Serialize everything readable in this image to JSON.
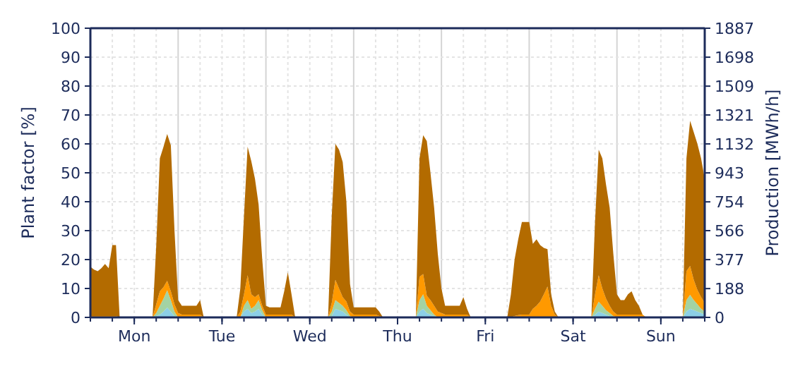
{
  "chart_data": {
    "type": "area",
    "stacked": true,
    "ylabel": "Plant factor [%]",
    "y2label": "Production [MWh/h]",
    "categories": [
      null,
      null,
      null,
      null,
      null,
      null,
      null,
      null,
      null,
      null,
      null,
      null,
      "Mon",
      null,
      null,
      null,
      null,
      null,
      null,
      null,
      null,
      null,
      null,
      null,
      null,
      null,
      null,
      null,
      null,
      null,
      null,
      null,
      null,
      null,
      null,
      null,
      "Tue",
      null,
      null,
      null,
      null,
      null,
      null,
      null,
      null,
      null,
      null,
      null,
      null,
      null,
      null,
      null,
      null,
      null,
      null,
      null,
      null,
      null,
      null,
      null,
      "Wed",
      null,
      null,
      null,
      null,
      null,
      null,
      null,
      null,
      null,
      null,
      null,
      null,
      null,
      null,
      null,
      null,
      null,
      null,
      null,
      null,
      null,
      null,
      null,
      "Thu",
      null,
      null,
      null,
      null,
      null,
      null,
      null,
      null,
      null,
      null,
      null,
      null,
      null,
      null,
      null,
      null,
      null,
      null,
      null,
      null,
      null,
      null,
      null,
      "Fri",
      null,
      null,
      null,
      null,
      null,
      null,
      null,
      null,
      null,
      null,
      null,
      null,
      null,
      null,
      null,
      null,
      null,
      null,
      null,
      null,
      null,
      null,
      null,
      "Sat",
      null,
      null,
      null,
      null,
      null,
      null,
      null,
      null,
      null,
      null,
      null,
      null,
      null,
      null,
      null,
      null,
      null,
      null,
      null,
      null,
      null,
      null,
      null,
      "Sun",
      null,
      null,
      null,
      null,
      null,
      null,
      null,
      null,
      null,
      null,
      null,
      null
    ],
    "series": [
      {
        "color": "#8ccfe6",
        "values": [
          0,
          0,
          0,
          0,
          0,
          0,
          0,
          0,
          0,
          0,
          0,
          0,
          0,
          0,
          0,
          0,
          0,
          0,
          0.5,
          1,
          2,
          3.4,
          2,
          0.5,
          0,
          0,
          0,
          0,
          0,
          0,
          0,
          0,
          0,
          0,
          0,
          0,
          0,
          0,
          0,
          0,
          0,
          0,
          2,
          3,
          1.5,
          2,
          3,
          1,
          0,
          0,
          0,
          0,
          0,
          0,
          0,
          0,
          0,
          0,
          0,
          0,
          0,
          0,
          0,
          0,
          0,
          0,
          0.5,
          3,
          2.5,
          2,
          1,
          0,
          0,
          0,
          0,
          0,
          0,
          0,
          0,
          0,
          0,
          0,
          0,
          0,
          0,
          0,
          0,
          0,
          0,
          0,
          2,
          3,
          1.5,
          1,
          0.5,
          0,
          0,
          0,
          0,
          0,
          0,
          0,
          0,
          0,
          0,
          0,
          0,
          0,
          0,
          0,
          0,
          0,
          0,
          0,
          0,
          0,
          0,
          0,
          0,
          0,
          0,
          0,
          0,
          0,
          0,
          0,
          0,
          0,
          0,
          0,
          0,
          0,
          0,
          0,
          0,
          0,
          0,
          0,
          1,
          2,
          1.5,
          1,
          0.5,
          0,
          0,
          0,
          0,
          0,
          0,
          0,
          0,
          0,
          0,
          0,
          0,
          0,
          0,
          0,
          0,
          0,
          0,
          0,
          0,
          2,
          3,
          2.5,
          2,
          1.5,
          1
        ]
      },
      {
        "color": "#a3d3a3",
        "values": [
          0,
          0,
          0,
          0,
          0,
          0,
          0,
          0,
          0,
          0,
          0,
          0,
          0,
          0,
          0,
          0,
          0,
          0,
          1,
          3,
          4.5,
          6,
          4,
          1.5,
          0,
          0,
          0,
          0,
          0,
          0,
          0,
          0,
          0,
          0,
          0,
          0,
          0,
          0,
          0,
          0,
          0,
          0,
          2,
          3,
          1.5,
          2,
          3,
          1.5,
          0,
          0,
          0,
          0,
          0,
          0,
          0,
          0,
          0,
          0,
          0,
          0,
          0,
          0,
          0,
          0,
          0,
          0,
          1.5,
          3,
          2.5,
          2,
          1.5,
          0.5,
          0,
          0,
          0,
          0,
          0,
          0,
          0,
          0,
          0,
          0,
          0,
          0,
          0,
          0,
          0,
          0,
          0,
          0,
          4,
          5,
          2.5,
          1.5,
          0.5,
          0,
          0,
          0,
          0,
          0,
          0,
          0,
          0,
          0,
          0,
          0,
          0,
          0,
          0,
          0,
          0,
          0,
          0,
          0,
          0,
          0,
          0,
          0,
          0,
          0,
          0,
          0,
          0,
          0,
          0,
          0,
          0,
          0,
          0,
          0,
          0,
          0,
          0,
          0,
          0,
          0,
          0,
          0,
          2,
          3.4,
          2.5,
          1.5,
          1,
          0.5,
          0,
          0,
          0,
          0,
          0,
          0,
          0,
          0,
          0,
          0,
          0,
          0,
          0,
          0,
          0,
          0,
          0,
          0,
          0,
          4,
          4.8,
          3.5,
          2.5,
          1.5,
          1
        ]
      },
      {
        "color": "#ff9900",
        "values": [
          0.5,
          0.5,
          0.5,
          0.5,
          0.5,
          0.5,
          0.5,
          0.5,
          0,
          0,
          0,
          0,
          0,
          0,
          0,
          0,
          0,
          0,
          3,
          5,
          4,
          3.3,
          3,
          2.5,
          1.5,
          1,
          1,
          1,
          1,
          1,
          1,
          0,
          0,
          0,
          0,
          0,
          0,
          0,
          0,
          0,
          0,
          2,
          4,
          8.6,
          5,
          3,
          2,
          1.5,
          1,
          1,
          1,
          1,
          1,
          1,
          1,
          1,
          0,
          0,
          0,
          0,
          0,
          0,
          0,
          0,
          0,
          0,
          3,
          7,
          5,
          3,
          3,
          1.5,
          1,
          1,
          1,
          1,
          1,
          1,
          1,
          0.5,
          0,
          0,
          0,
          0,
          0,
          0,
          0,
          0,
          0,
          0,
          8,
          7,
          3.5,
          3.5,
          3,
          2,
          1.5,
          1,
          1,
          1,
          1,
          1,
          1,
          1,
          0,
          0,
          0,
          0,
          0,
          0,
          0,
          0,
          0,
          0,
          0,
          0,
          0.5,
          0.8,
          1,
          1,
          1,
          3,
          4,
          5.5,
          8,
          10.7,
          4,
          1,
          0,
          0,
          0,
          0,
          0,
          0,
          0,
          0,
          0,
          0,
          5,
          9.2,
          6,
          4,
          2.5,
          1.5,
          1,
          1,
          1,
          1,
          1,
          1,
          1,
          1,
          0,
          0,
          0,
          0,
          0,
          0,
          0,
          0,
          0,
          0,
          0,
          10,
          10,
          7,
          5,
          4,
          3
        ]
      },
      {
        "color": "#b36b00",
        "values": [
          17,
          16,
          15.5,
          16.5,
          18,
          16.5,
          24.5,
          24.5,
          0,
          0,
          0,
          0,
          0,
          0,
          0,
          0,
          0,
          0,
          20,
          46,
          48.5,
          50.7,
          50.5,
          25.5,
          4.5,
          3,
          3,
          3,
          3,
          3,
          5,
          0,
          0,
          0,
          0,
          0,
          0,
          0,
          0,
          0,
          0,
          8,
          27,
          44.4,
          46,
          41,
          31,
          16,
          3,
          2.5,
          2.5,
          2.5,
          2.5,
          8,
          14.6,
          7,
          0,
          0,
          0,
          0,
          0,
          0,
          0,
          0,
          0,
          0,
          30,
          47,
          48,
          46.7,
          34.5,
          9.5,
          2.5,
          2.5,
          2.5,
          2.5,
          2.5,
          2.5,
          2.5,
          1.5,
          0,
          0,
          0,
          0,
          0,
          0,
          0,
          0,
          0,
          0,
          41,
          48,
          53.5,
          44,
          34,
          20,
          8.5,
          3,
          3,
          3,
          3,
          3,
          6,
          2,
          0,
          0,
          0,
          0,
          0,
          0,
          0,
          0,
          0,
          0,
          0,
          8,
          19.5,
          26.2,
          32,
          32,
          32,
          22.4,
          23,
          19.5,
          16,
          12.9,
          4,
          1,
          0,
          0,
          0,
          0,
          0,
          0,
          0,
          0,
          0,
          0,
          25,
          43.4,
          45,
          39.5,
          34,
          20,
          7,
          5,
          5,
          7,
          8,
          5,
          3,
          0,
          0,
          0,
          0,
          0,
          0,
          0,
          0,
          0,
          0,
          0,
          0,
          39,
          50.2,
          51,
          50.5,
          48,
          43
        ]
      }
    ],
    "ylim": [
      0,
      100
    ],
    "yticks": [
      0,
      10,
      20,
      30,
      40,
      50,
      60,
      70,
      80,
      90,
      100
    ],
    "y2lim": [
      0,
      1887
    ],
    "y2ticks": [
      0,
      188,
      377,
      566,
      754,
      943,
      1132,
      1321,
      1509,
      1698,
      1887
    ],
    "grid": true
  }
}
